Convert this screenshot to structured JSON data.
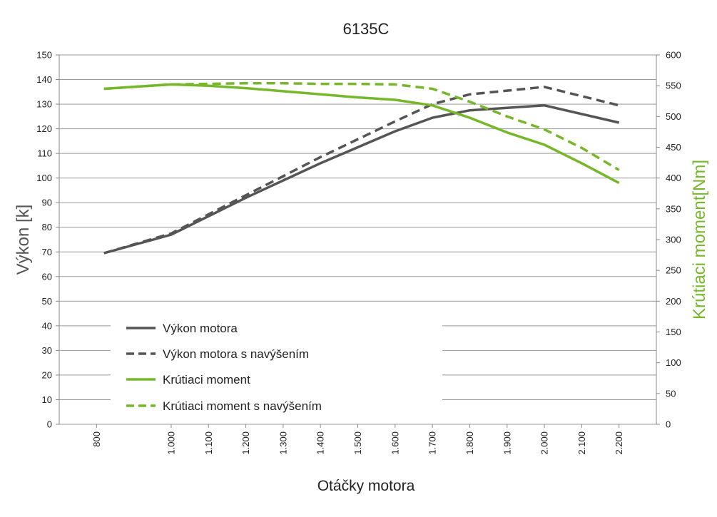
{
  "chart_data": {
    "type": "line",
    "title": "6135C",
    "xlabel": "Otáčky motora",
    "ylabel_left": "Výkon [k]",
    "ylabel_right": "Krútiaci moment[Nm]",
    "x_ticks": [
      800,
      1000,
      1100,
      1200,
      1300,
      1400,
      1500,
      1600,
      1700,
      1800,
      1900,
      2000,
      2100,
      2200
    ],
    "x_tick_labels": [
      "800",
      "1.000",
      "1.100",
      "1.200",
      "1.300",
      "1.400",
      "1.500",
      "1.600",
      "1.700",
      "1.800",
      "1.900",
      "2.000",
      "2.100",
      "2.200"
    ],
    "ylim_left": [
      0,
      150
    ],
    "yticks_left": [
      "0",
      "10",
      "20",
      "30",
      "40",
      "50",
      "60",
      "70",
      "80",
      "90",
      "100",
      "110",
      "120",
      "130",
      "140",
      "150"
    ],
    "ylim_right": [
      0,
      600
    ],
    "yticks_right": [
      "0",
      "50",
      "100",
      "150",
      "200",
      "250",
      "300",
      "350",
      "400",
      "450",
      "500",
      "550",
      "600"
    ],
    "grid": true,
    "legend_position": "lower-left",
    "series": [
      {
        "name": "Výkon motora",
        "axis": "left",
        "color": "#555555",
        "dash": false,
        "x": [
          820,
          1000,
          1200,
          1400,
          1600,
          1700,
          1800,
          2000,
          2200
        ],
        "y": [
          69.5,
          77,
          92,
          106,
          119,
          124.5,
          127.5,
          129.5,
          122.5
        ]
      },
      {
        "name": "Výkon motora s navýšením",
        "axis": "left",
        "color": "#555555",
        "dash": true,
        "x": [
          820,
          1000,
          1200,
          1400,
          1600,
          1700,
          1800,
          2000,
          2200
        ],
        "y": [
          69.5,
          77.5,
          93,
          108.5,
          123,
          130,
          134,
          137,
          129.5
        ]
      },
      {
        "name": "Krútiaci moment",
        "axis": "right",
        "color": "#76b82a",
        "dash": false,
        "x": [
          820,
          1000,
          1100,
          1200,
          1300,
          1400,
          1500,
          1600,
          1700,
          1800,
          1900,
          2000,
          2100,
          2200
        ],
        "y": [
          545,
          552,
          550,
          546,
          541,
          536,
          531,
          527,
          518,
          498,
          474,
          454,
          424,
          392
        ]
      },
      {
        "name": "Krútiaci moment s navýšením",
        "axis": "right",
        "color": "#76b82a",
        "dash": true,
        "x": [
          820,
          1000,
          1100,
          1200,
          1300,
          1400,
          1500,
          1600,
          1700,
          1800,
          1900,
          2000,
          2100,
          2200
        ],
        "y": [
          545,
          552,
          553,
          554,
          554,
          553,
          553,
          552,
          545,
          524,
          500,
          479,
          449,
          413
        ]
      }
    ]
  },
  "colors": {
    "power": "#555555",
    "torque": "#76b82a",
    "grid": "#999999",
    "axis": "#888888"
  }
}
